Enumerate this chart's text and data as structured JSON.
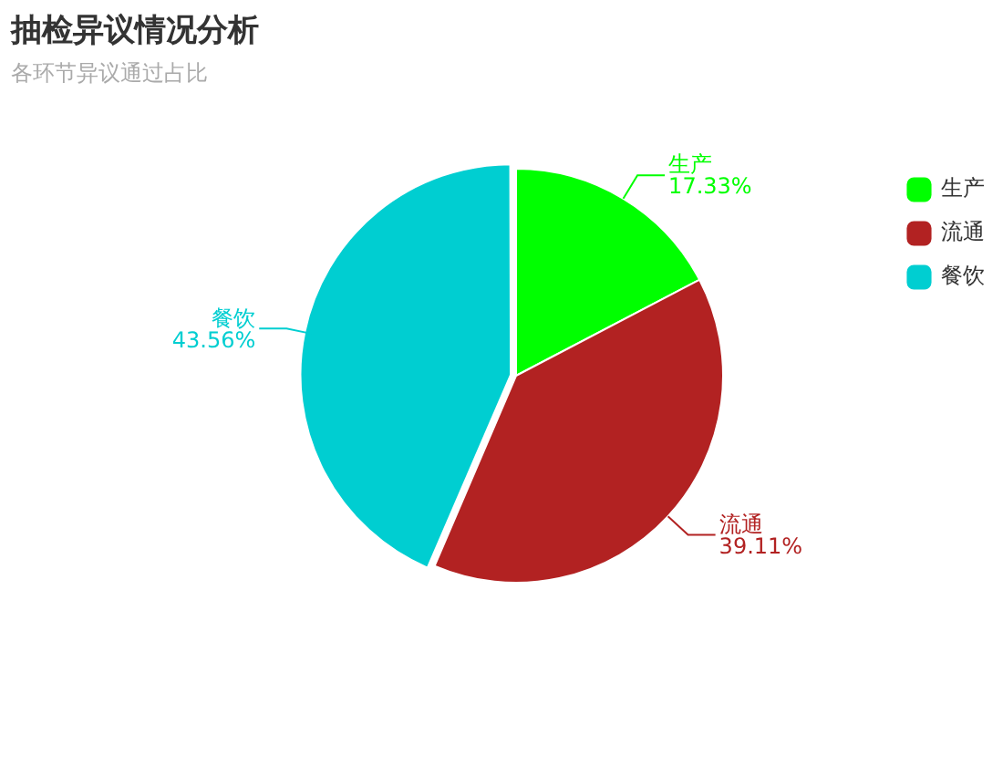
{
  "chart_data": {
    "type": "pie",
    "title": "抽检异议情况分析",
    "subtitle": "各环节异议通过占比",
    "categories": [
      "生产",
      "流通",
      "餐饮"
    ],
    "values": [
      17.33,
      39.11,
      43.56
    ],
    "value_labels": [
      "17.33%",
      "39.11%",
      "43.56%"
    ],
    "colors": [
      "#00ff00",
      "#b22222",
      "#00ced1"
    ],
    "legend": "top right"
  }
}
